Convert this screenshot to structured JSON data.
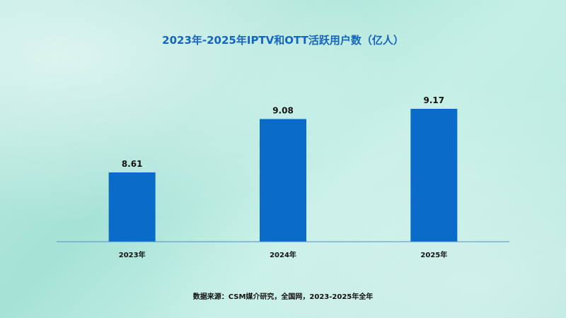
{
  "chart_data": {
    "type": "bar",
    "title": "2023年-2025年IPTV和OTT活跃用户数（亿人）",
    "categories": [
      "2023年",
      "2024年",
      "2025年"
    ],
    "values": [
      8.61,
      9.08,
      9.17
    ],
    "data_labels": [
      "8.61",
      "9.08",
      "9.17"
    ],
    "grid": false,
    "legend": "none"
  },
  "source": "数据来源：CSM媒介研究，全国网，2023-2025年全年",
  "colors": {
    "bar": "#0a6cc8",
    "axis": "#4a90c8",
    "title": "#1565c0"
  }
}
